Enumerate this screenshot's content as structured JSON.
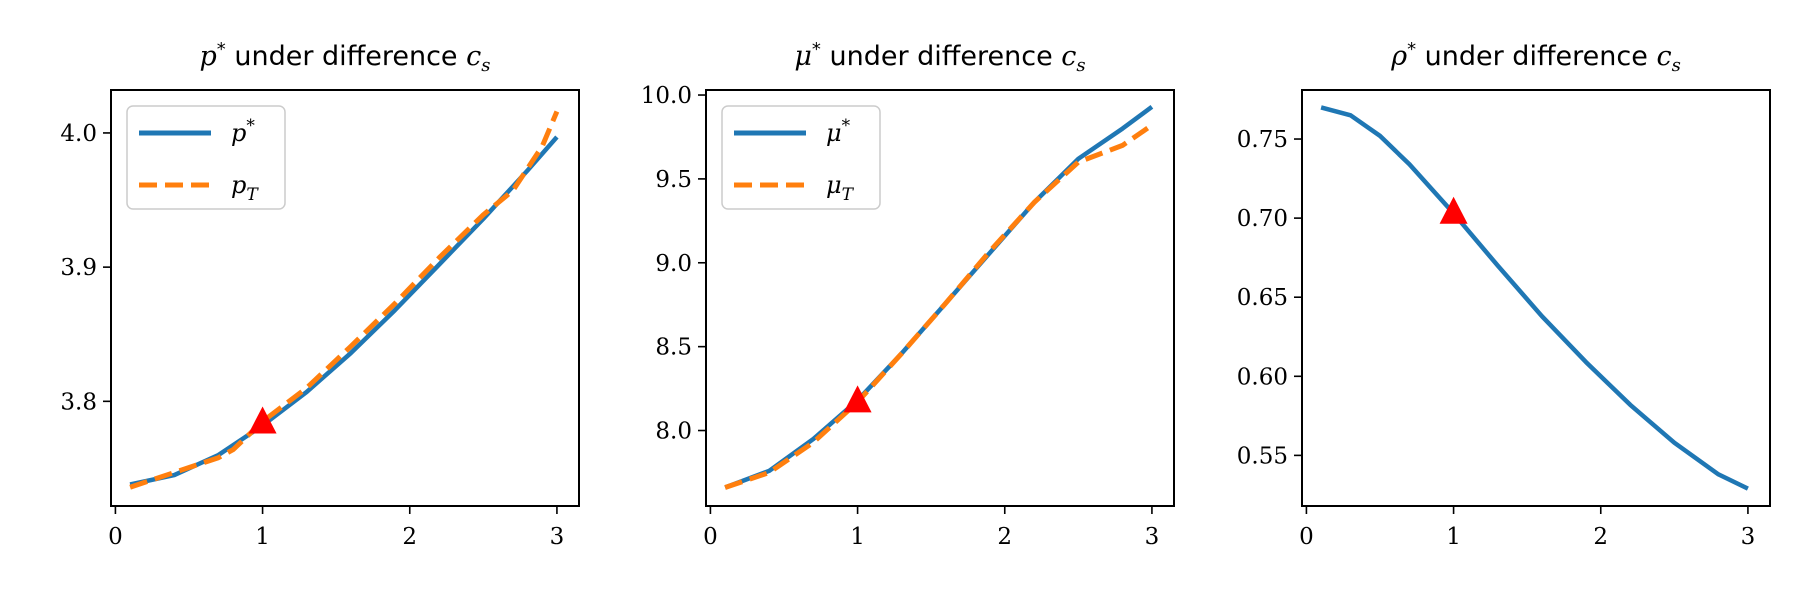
{
  "chart_data": [
    {
      "type": "line",
      "title_base": "p",
      "title_sup": "*",
      "title_text": " under difference ",
      "title_var": "c",
      "title_sub": "s",
      "xlabel": "",
      "ylabel": "",
      "xlim": [
        -0.03,
        3.15
      ],
      "ylim": [
        3.722,
        4.032
      ],
      "xticks": [
        0,
        1,
        2,
        3
      ],
      "yticks": [
        3.8,
        3.9,
        4.0
      ],
      "ytick_labels": [
        "3.8",
        "3.9",
        "4.0"
      ],
      "grid": false,
      "legend_position": "top-left",
      "series": [
        {
          "name": "p*",
          "legend_base": "p",
          "legend_sup": "*",
          "legend_sub": "",
          "color": "#1f77b4",
          "dashed": false,
          "x": [
            0.1,
            0.4,
            0.7,
            1.0,
            1.3,
            1.6,
            1.9,
            2.2,
            2.5,
            2.8,
            3.0
          ],
          "y": [
            3.738,
            3.745,
            3.76,
            3.782,
            3.807,
            3.836,
            3.868,
            3.902,
            3.936,
            3.972,
            3.997
          ]
        },
        {
          "name": "pT",
          "legend_base": "p",
          "legend_sup": "",
          "legend_sub": "T",
          "color": "#ff7f0e",
          "dashed": true,
          "x": [
            0.1,
            0.4,
            0.7,
            0.8,
            1.0,
            1.3,
            1.6,
            1.9,
            2.2,
            2.5,
            2.7,
            2.9,
            3.0
          ],
          "y": [
            3.736,
            3.747,
            3.758,
            3.764,
            3.785,
            3.81,
            3.841,
            3.873,
            3.907,
            3.939,
            3.957,
            3.99,
            4.016
          ]
        }
      ],
      "marker": {
        "x": 1.0,
        "y": 3.785,
        "shape": "triangle",
        "color": "#ff0000"
      }
    },
    {
      "type": "line",
      "title_base": "μ",
      "title_sup": "*",
      "title_text": " under difference ",
      "title_var": "c",
      "title_sub": "s",
      "xlabel": "",
      "ylabel": "",
      "xlim": [
        -0.03,
        3.15
      ],
      "ylim": [
        7.55,
        10.03
      ],
      "xticks": [
        0,
        1,
        2,
        3
      ],
      "yticks": [
        8.0,
        8.5,
        9.0,
        9.5,
        10.0
      ],
      "ytick_labels": [
        "8.0",
        "8.5",
        "9.0",
        "9.5",
        "10.0"
      ],
      "grid": false,
      "legend_position": "top-left",
      "series": [
        {
          "name": "μ*",
          "legend_base": "μ",
          "legend_sup": "*",
          "legend_sub": "",
          "color": "#1f77b4",
          "dashed": false,
          "x": [
            0.1,
            0.4,
            0.7,
            1.0,
            1.3,
            1.6,
            1.9,
            2.2,
            2.5,
            2.8,
            3.0
          ],
          "y": [
            7.66,
            7.76,
            7.95,
            8.18,
            8.46,
            8.76,
            9.06,
            9.36,
            9.62,
            9.8,
            9.93
          ]
        },
        {
          "name": "μT",
          "legend_base": "μ",
          "legend_sup": "",
          "legend_sub": "T",
          "color": "#ff7f0e",
          "dashed": true,
          "x": [
            0.1,
            0.4,
            0.7,
            1.0,
            1.3,
            1.6,
            1.9,
            2.2,
            2.5,
            2.8,
            3.0
          ],
          "y": [
            7.66,
            7.75,
            7.93,
            8.17,
            8.46,
            8.76,
            9.07,
            9.36,
            9.6,
            9.7,
            9.82
          ]
        }
      ],
      "marker": {
        "x": 1.0,
        "y": 8.18,
        "shape": "triangle",
        "color": "#ff0000"
      }
    },
    {
      "type": "line",
      "title_base": "ρ",
      "title_sup": "*",
      "title_text": " under difference ",
      "title_var": "c",
      "title_sub": "s",
      "xlabel": "",
      "ylabel": "",
      "xlim": [
        -0.03,
        3.15
      ],
      "ylim": [
        0.518,
        0.781
      ],
      "xticks": [
        0,
        1,
        2,
        3
      ],
      "yticks": [
        0.55,
        0.6,
        0.65,
        0.7,
        0.75
      ],
      "ytick_labels": [
        "0.55",
        "0.60",
        "0.65",
        "0.70",
        "0.75"
      ],
      "grid": false,
      "legend_position": "none",
      "series": [
        {
          "name": "ρ*",
          "color": "#1f77b4",
          "dashed": false,
          "x": [
            0.1,
            0.3,
            0.5,
            0.7,
            1.0,
            1.3,
            1.6,
            1.9,
            2.2,
            2.5,
            2.8,
            3.0
          ],
          "y": [
            0.77,
            0.765,
            0.752,
            0.734,
            0.703,
            0.67,
            0.638,
            0.609,
            0.582,
            0.558,
            0.538,
            0.529
          ]
        }
      ],
      "marker": {
        "x": 1.0,
        "y": 0.704,
        "shape": "triangle",
        "color": "#ff0000"
      }
    }
  ]
}
